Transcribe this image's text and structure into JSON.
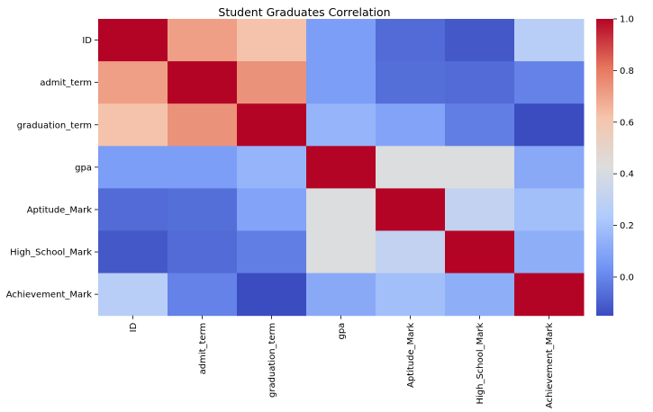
{
  "chart_data": {
    "type": "heatmap",
    "title": "Student Graduates Correlation",
    "rows": [
      "ID",
      "admit_term",
      "graduation_term",
      "gpa",
      "Aptitude_Mark",
      "High_School_Mark",
      "Achievement_Mark"
    ],
    "columns": [
      "ID",
      "admit_term",
      "graduation_term",
      "gpa",
      "Aptitude_Mark",
      "High_School_Mark",
      "Achievement_Mark"
    ],
    "values": [
      [
        1.0,
        0.71,
        0.62,
        0.07,
        -0.07,
        -0.12,
        0.27
      ],
      [
        0.71,
        1.0,
        0.74,
        0.07,
        -0.06,
        -0.07,
        -0.01
      ],
      [
        0.62,
        0.74,
        1.0,
        0.15,
        0.09,
        -0.02,
        -0.15
      ],
      [
        0.07,
        0.07,
        0.15,
        1.0,
        0.42,
        0.42,
        0.11
      ],
      [
        -0.07,
        -0.06,
        0.09,
        0.42,
        1.0,
        0.31,
        0.19
      ],
      [
        -0.12,
        -0.07,
        -0.02,
        0.42,
        0.31,
        1.0,
        0.13
      ],
      [
        0.27,
        -0.01,
        -0.15,
        0.11,
        0.19,
        0.13,
        1.0
      ]
    ],
    "colormap": "coolwarm",
    "vmin": -0.15,
    "vmax": 1.0,
    "colorbar_ticks": [
      "0.0",
      "0.2",
      "0.4",
      "0.6",
      "0.8",
      "1.0"
    ],
    "colorbar_tick_values": [
      0.0,
      0.2,
      0.4,
      0.6,
      0.8,
      1.0
    ],
    "colorbar_stops": [
      "#3b4cc0",
      "#7396f5",
      "#b0cbfc",
      "#dcdddd",
      "#f5c4ac",
      "#e6775e",
      "#b40426"
    ]
  }
}
